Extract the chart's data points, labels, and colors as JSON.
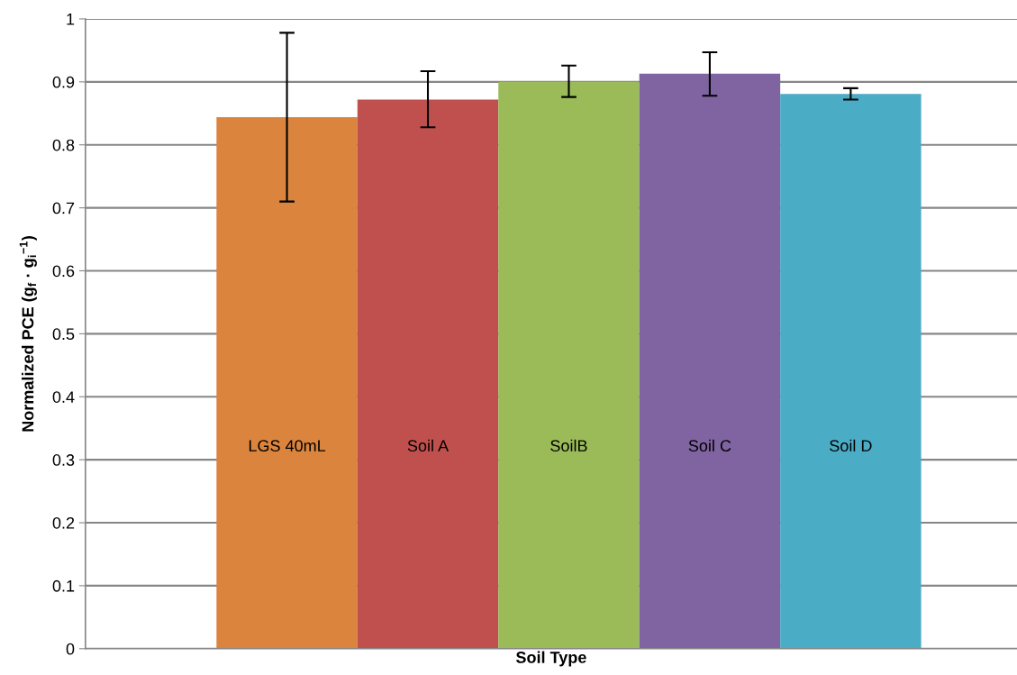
{
  "chart_data": {
    "type": "bar",
    "xlabel": "Soil Type",
    "ylabel": "Normalized PCE (g$_{f}$ · g$_{i}$$^{−1}$)",
    "categories": [
      "LGS 40mL",
      "Soil A",
      "SoilB",
      "Soil C",
      "Soil D"
    ],
    "values": [
      0.844,
      0.872,
      0.9,
      0.913,
      0.881
    ],
    "colors": [
      "#db843d",
      "#c0504d",
      "#9bbb59",
      "#8064a2",
      "#4bacc6"
    ],
    "errors": [
      [
        0.71,
        0.978
      ],
      [
        0.828,
        0.917
      ],
      [
        0.876,
        0.926
      ],
      [
        0.878,
        0.947
      ],
      [
        0.872,
        0.89
      ]
    ],
    "ylim": [
      0,
      1
    ],
    "yticks": [
      0,
      0.1,
      0.2,
      0.3,
      0.4,
      0.5,
      0.6,
      0.7,
      0.8,
      0.9,
      1
    ],
    "grid": "y"
  }
}
